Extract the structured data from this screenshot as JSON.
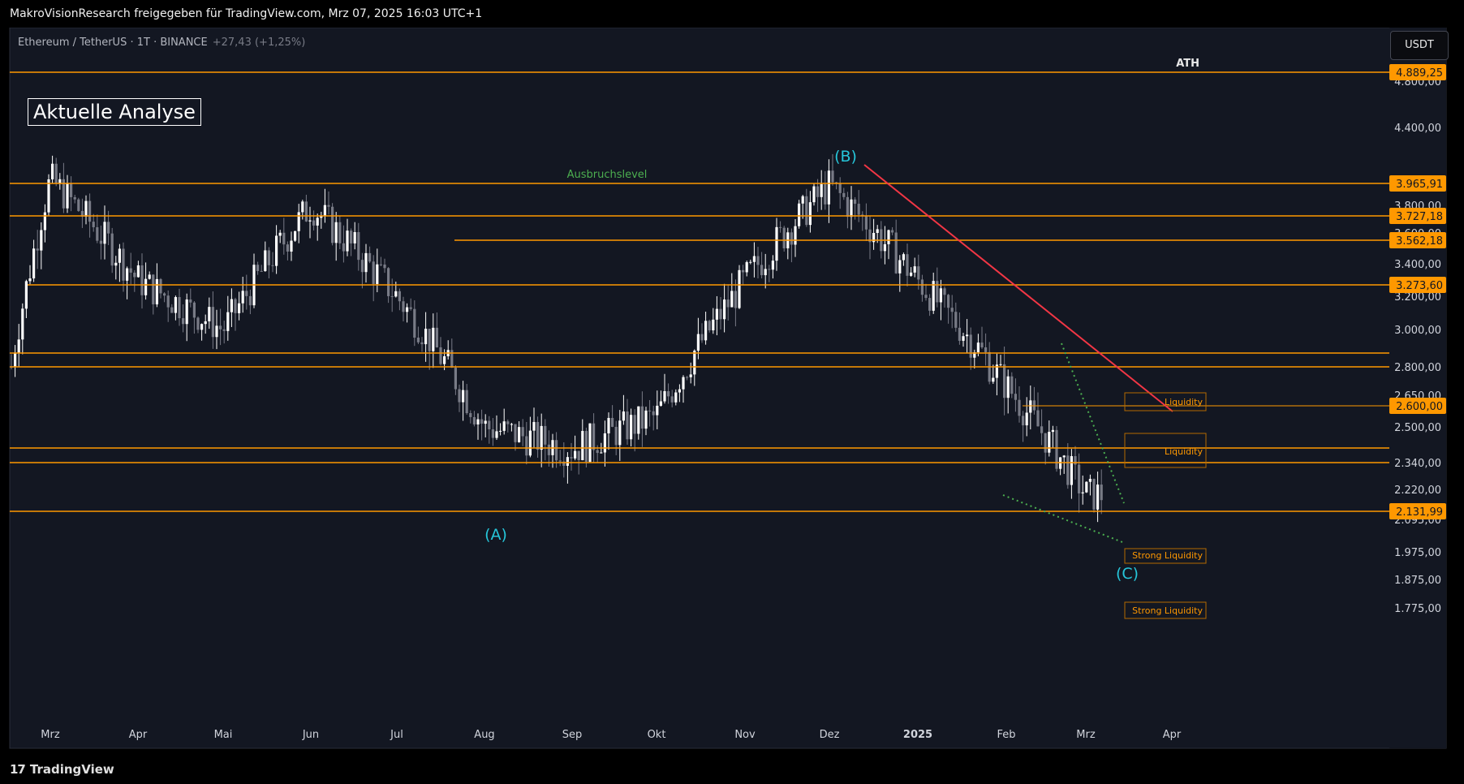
{
  "header": {
    "publish_line": "MakroVisionResearch freigegeben für TradingView.com, Mrz 07, 2025 16:03 UTC+1",
    "symbol": "Ethereum / TetherUS · 1T · BINANCE",
    "change": "+27,43 (+1,25%)",
    "currency_button": "USDT"
  },
  "footer": {
    "logo_mark": "17",
    "logo_text": "TradingView"
  },
  "annotations": {
    "analysis_box": "Aktuelle Analyse",
    "breakout": "Ausbruchslevel",
    "ath": "ATH",
    "wave_a": "(A)",
    "wave_b": "(B)",
    "wave_c": "(C)",
    "liquidity": "Liquidity",
    "strong_liquidity": "Strong Liquidity"
  },
  "colors": {
    "background": "#131722",
    "level_line": "#ff9800",
    "trend_line": "#f23645",
    "wave_label": "#26c6da",
    "dotted_line": "#4caf50",
    "candle_up": "#ffffff",
    "candle_down": "#787b86",
    "price_tag": "#ff9800"
  },
  "chart_data": {
    "type": "candlestick",
    "x_axis_labels": [
      "Mrz",
      "Apr",
      "Mai",
      "Jun",
      "Jul",
      "Aug",
      "Sep",
      "Okt",
      "Nov",
      "Dez",
      "2025",
      "Feb",
      "Mrz",
      "Apr"
    ],
    "y_axis_ticks": [
      "4.800,00",
      "4.400,00",
      "3.800,00",
      "3.600,00",
      "3.400,00",
      "3.200,00",
      "3.000,00",
      "2.800,00",
      "2.650,00",
      "2.500,00",
      "2.340,00",
      "2.220,00",
      "2.095,00",
      "1.975,00",
      "1.875,00",
      "1.775,00"
    ],
    "price_labels": [
      "4.889,25",
      "3.965,91",
      "3.727,18",
      "3.562,18",
      "3.273,60",
      "2.600,00",
      "2.131,99"
    ],
    "horizontal_levels": [
      4889.25,
      3965.91,
      3727.18,
      3562.18,
      3273.6,
      2860,
      2800,
      2600,
      2400,
      2340,
      2131.99
    ],
    "approx_close_path": [
      [
        "Feb 2024",
        2800
      ],
      [
        "Mrz 2024",
        4000
      ],
      [
        "Apr 2024",
        3300
      ],
      [
        "Mai 2024",
        3000
      ],
      [
        "Jun 2024",
        3800
      ],
      [
        "Jul 2024",
        3200
      ],
      [
        "Aug 2024",
        2500
      ],
      [
        "Sep 2024",
        2400
      ],
      [
        "Okt 2024",
        2550
      ],
      [
        "Nov 2024",
        3300
      ],
      [
        "Dez 2024",
        3950
      ],
      [
        "2025",
        3300
      ],
      [
        "Feb 2025",
        2700
      ],
      [
        "Mrz 2025",
        2200
      ]
    ]
  }
}
